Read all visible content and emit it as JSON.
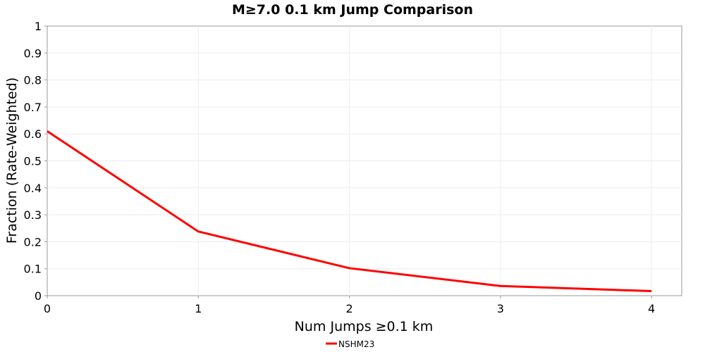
{
  "chart_data": {
    "type": "line",
    "title": "M≥7.0 0.1 km Jump Comparison",
    "xlabel": "Num Jumps ≥0.1 km",
    "ylabel": "Fraction (Rate-Weighted)",
    "xlim": [
      0,
      4.2
    ],
    "ylim": [
      0,
      1
    ],
    "xticks": [
      0,
      1,
      2,
      3,
      4
    ],
    "yticks": [
      0,
      0.1,
      0.2,
      0.3,
      0.4,
      0.5,
      0.6,
      0.7,
      0.8,
      0.9,
      1
    ],
    "grid": true,
    "legend_position": "bottom-center",
    "series": [
      {
        "name": "NSHM23",
        "color": "#ff0000",
        "x": [
          0,
          1,
          2,
          3,
          4
        ],
        "y": [
          0.61,
          0.238,
          0.102,
          0.036,
          0.017
        ]
      }
    ]
  }
}
